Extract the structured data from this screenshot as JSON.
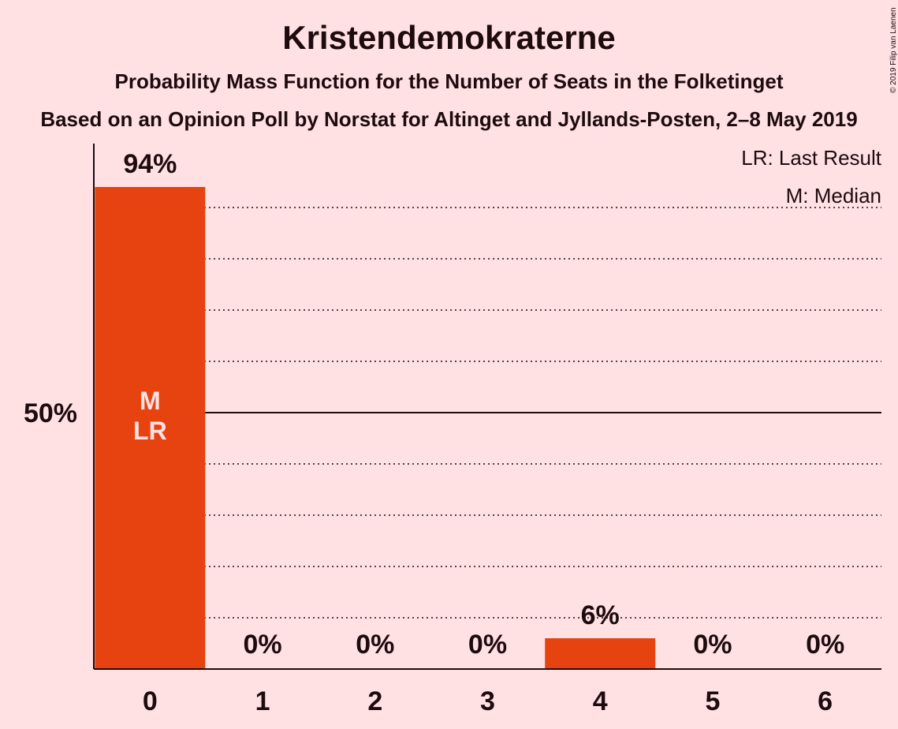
{
  "title": "Kristendemokraterne",
  "subtitle": "Probability Mass Function for the Number of Seats in the Folketinget",
  "source": "Based on an Opinion Poll by Norstat for Altinget and Jyllands-Posten, 2–8 May 2019",
  "copyright": "© 2019 Filip van Laenen",
  "colors": {
    "bar": "#e64311",
    "background": "#ffe1e4",
    "text": "#1e0b0e"
  },
  "chart_data": {
    "type": "bar",
    "categories": [
      "0",
      "1",
      "2",
      "3",
      "4",
      "5",
      "6"
    ],
    "values": [
      94,
      0,
      0,
      0,
      6,
      0,
      0
    ],
    "value_labels": [
      "94%",
      "0%",
      "0%",
      "0%",
      "6%",
      "0%",
      "0%"
    ],
    "bar_annotations": [
      [
        "M",
        "LR"
      ],
      [],
      [],
      [],
      [],
      [],
      []
    ],
    "ylim": [
      0,
      100
    ],
    "y_ticks": [
      {
        "value": 50,
        "label": "50%"
      }
    ],
    "gridlines_dotted": [
      10,
      20,
      30,
      40,
      60,
      70,
      80,
      90
    ],
    "gridline_solid": 50,
    "legend": [
      "LR: Last Result",
      "M: Median"
    ],
    "legend_position": "top-right"
  }
}
